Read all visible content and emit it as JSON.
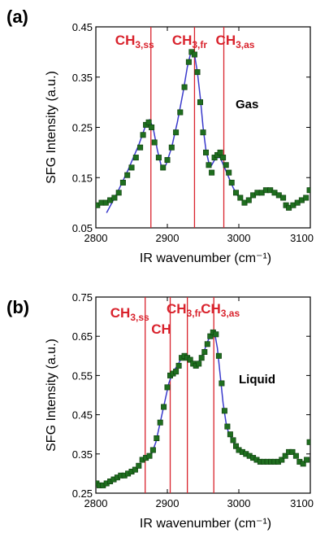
{
  "chart_data": [
    {
      "type": "scatter",
      "panel": "(a)",
      "phase": "Gas",
      "xlabel": "IR wavenumber (cm⁻¹)",
      "ylabel": "SFG Intensity (a.u.)",
      "xlim": [
        2800,
        3100
      ],
      "ylim": [
        0.05,
        0.45
      ],
      "xticks": [
        "2800",
        "2900",
        "3000",
        "3100"
      ],
      "yticks": [
        "0.05",
        "0.15",
        "0.25",
        "0.35",
        "0.45"
      ],
      "peaks": [
        {
          "main": "CH",
          "sub": "3,ss",
          "x": 2877
        },
        {
          "main": "CH",
          "sub": "3,fr",
          "x": 2938
        },
        {
          "main": "CH",
          "sub": "3,as",
          "x": 2979
        }
      ],
      "marker_color": "#1f6e1f",
      "fit_color": "#3a3acc",
      "line_color": "#d9232d",
      "points": [
        [
          2802,
          0.095
        ],
        [
          2808,
          0.1
        ],
        [
          2814,
          0.1
        ],
        [
          2820,
          0.105
        ],
        [
          2826,
          0.11
        ],
        [
          2832,
          0.12
        ],
        [
          2838,
          0.14
        ],
        [
          2844,
          0.155
        ],
        [
          2850,
          0.17
        ],
        [
          2856,
          0.19
        ],
        [
          2862,
          0.21
        ],
        [
          2866,
          0.235
        ],
        [
          2870,
          0.255
        ],
        [
          2874,
          0.26
        ],
        [
          2878,
          0.25
        ],
        [
          2882,
          0.22
        ],
        [
          2888,
          0.19
        ],
        [
          2894,
          0.17
        ],
        [
          2900,
          0.185
        ],
        [
          2906,
          0.21
        ],
        [
          2912,
          0.24
        ],
        [
          2918,
          0.28
        ],
        [
          2924,
          0.33
        ],
        [
          2930,
          0.38
        ],
        [
          2934,
          0.4
        ],
        [
          2938,
          0.395
        ],
        [
          2942,
          0.36
        ],
        [
          2946,
          0.3
        ],
        [
          2950,
          0.24
        ],
        [
          2954,
          0.2
        ],
        [
          2958,
          0.175
        ],
        [
          2962,
          0.16
        ],
        [
          2966,
          0.19
        ],
        [
          2970,
          0.195
        ],
        [
          2974,
          0.2
        ],
        [
          2978,
          0.19
        ],
        [
          2982,
          0.175
        ],
        [
          2986,
          0.16
        ],
        [
          2990,
          0.14
        ],
        [
          2996,
          0.12
        ],
        [
          3002,
          0.11
        ],
        [
          3008,
          0.1
        ],
        [
          3014,
          0.105
        ],
        [
          3020,
          0.115
        ],
        [
          3026,
          0.12
        ],
        [
          3032,
          0.12
        ],
        [
          3038,
          0.125
        ],
        [
          3044,
          0.125
        ],
        [
          3050,
          0.12
        ],
        [
          3056,
          0.115
        ],
        [
          3062,
          0.11
        ],
        [
          3066,
          0.095
        ],
        [
          3070,
          0.09
        ],
        [
          3076,
          0.095
        ],
        [
          3082,
          0.1
        ],
        [
          3088,
          0.105
        ],
        [
          3094,
          0.11
        ],
        [
          3099,
          0.125
        ]
      ],
      "fit": [
        [
          2815,
          0.08
        ],
        [
          2830,
          0.12
        ],
        [
          2845,
          0.165
        ],
        [
          2860,
          0.215
        ],
        [
          2870,
          0.255
        ],
        [
          2875,
          0.265
        ],
        [
          2880,
          0.25
        ],
        [
          2886,
          0.205
        ],
        [
          2892,
          0.17
        ],
        [
          2898,
          0.175
        ],
        [
          2906,
          0.21
        ],
        [
          2914,
          0.26
        ],
        [
          2922,
          0.32
        ],
        [
          2928,
          0.37
        ],
        [
          2933,
          0.4
        ],
        [
          2938,
          0.395
        ],
        [
          2942,
          0.36
        ],
        [
          2946,
          0.31
        ],
        [
          2950,
          0.25
        ],
        [
          2954,
          0.205
        ],
        [
          2958,
          0.18
        ],
        [
          2962,
          0.175
        ],
        [
          2968,
          0.19
        ],
        [
          2974,
          0.19
        ],
        [
          2980,
          0.17
        ],
        [
          2986,
          0.15
        ],
        [
          2992,
          0.13
        ],
        [
          2998,
          0.115
        ],
        [
          3004,
          0.105
        ]
      ]
    },
    {
      "type": "scatter",
      "panel": "(b)",
      "phase": "Liquid",
      "xlabel": "IR wavenumber (cm⁻¹)",
      "ylabel": "SFG Intensity (a.u.)",
      "xlim": [
        2800,
        3100
      ],
      "ylim": [
        0.25,
        0.75
      ],
      "xticks": [
        "2800",
        "2900",
        "3000",
        "3100"
      ],
      "yticks": [
        "0.25",
        "0.35",
        "0.45",
        "0.55",
        "0.65",
        "0.75"
      ],
      "peaks": [
        {
          "main": "CH",
          "sub": "3,ss",
          "x": 2869
        },
        {
          "main": "CH",
          "sub": "",
          "x": 2904
        },
        {
          "main": "CH",
          "sub": "3,fr",
          "x": 2928
        },
        {
          "main": "CH",
          "sub": "3,as",
          "x": 2965
        }
      ],
      "marker_color": "#1f6e1f",
      "fit_color": "#3a3acc",
      "line_color": "#d9232d",
      "points": [
        [
          2801,
          0.275
        ],
        [
          2805,
          0.27
        ],
        [
          2810,
          0.27
        ],
        [
          2815,
          0.275
        ],
        [
          2820,
          0.28
        ],
        [
          2825,
          0.285
        ],
        [
          2830,
          0.29
        ],
        [
          2835,
          0.295
        ],
        [
          2840,
          0.295
        ],
        [
          2845,
          0.3
        ],
        [
          2850,
          0.305
        ],
        [
          2855,
          0.31
        ],
        [
          2860,
          0.32
        ],
        [
          2865,
          0.335
        ],
        [
          2870,
          0.34
        ],
        [
          2875,
          0.345
        ],
        [
          2880,
          0.36
        ],
        [
          2885,
          0.39
        ],
        [
          2890,
          0.43
        ],
        [
          2895,
          0.47
        ],
        [
          2900,
          0.52
        ],
        [
          2904,
          0.55
        ],
        [
          2908,
          0.555
        ],
        [
          2912,
          0.56
        ],
        [
          2916,
          0.575
        ],
        [
          2920,
          0.595
        ],
        [
          2924,
          0.6
        ],
        [
          2928,
          0.595
        ],
        [
          2932,
          0.59
        ],
        [
          2936,
          0.58
        ],
        [
          2940,
          0.575
        ],
        [
          2944,
          0.58
        ],
        [
          2948,
          0.595
        ],
        [
          2952,
          0.61
        ],
        [
          2956,
          0.63
        ],
        [
          2960,
          0.65
        ],
        [
          2964,
          0.66
        ],
        [
          2968,
          0.655
        ],
        [
          2972,
          0.6
        ],
        [
          2976,
          0.53
        ],
        [
          2980,
          0.46
        ],
        [
          2984,
          0.42
        ],
        [
          2988,
          0.4
        ],
        [
          2992,
          0.385
        ],
        [
          2996,
          0.37
        ],
        [
          3000,
          0.36
        ],
        [
          3005,
          0.355
        ],
        [
          3010,
          0.35
        ],
        [
          3015,
          0.345
        ],
        [
          3020,
          0.34
        ],
        [
          3025,
          0.335
        ],
        [
          3030,
          0.33
        ],
        [
          3035,
          0.33
        ],
        [
          3040,
          0.33
        ],
        [
          3045,
          0.33
        ],
        [
          3050,
          0.33
        ],
        [
          3055,
          0.33
        ],
        [
          3060,
          0.335
        ],
        [
          3065,
          0.345
        ],
        [
          3070,
          0.355
        ],
        [
          3075,
          0.355
        ],
        [
          3080,
          0.345
        ],
        [
          3085,
          0.33
        ],
        [
          3090,
          0.325
        ],
        [
          3095,
          0.335
        ],
        [
          3099,
          0.38
        ]
      ],
      "fit": [
        [
          2865,
          0.33
        ],
        [
          2872,
          0.34
        ],
        [
          2878,
          0.35
        ],
        [
          2884,
          0.38
        ],
        [
          2890,
          0.43
        ],
        [
          2896,
          0.48
        ],
        [
          2902,
          0.53
        ],
        [
          2908,
          0.56
        ],
        [
          2914,
          0.575
        ],
        [
          2920,
          0.595
        ],
        [
          2926,
          0.6
        ],
        [
          2932,
          0.59
        ],
        [
          2938,
          0.58
        ],
        [
          2944,
          0.585
        ],
        [
          2950,
          0.605
        ],
        [
          2956,
          0.635
        ],
        [
          2962,
          0.66
        ],
        [
          2966,
          0.66
        ],
        [
          2970,
          0.62
        ],
        [
          2974,
          0.55
        ],
        [
          2978,
          0.48
        ],
        [
          2982,
          0.43
        ],
        [
          2986,
          0.4
        ],
        [
          2990,
          0.39
        ],
        [
          2994,
          0.375
        ],
        [
          2998,
          0.365
        ]
      ]
    }
  ]
}
